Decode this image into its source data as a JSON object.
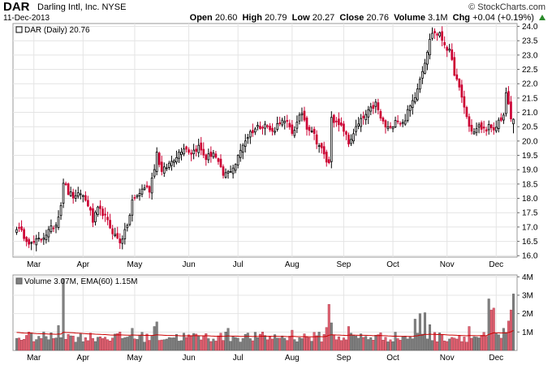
{
  "header": {
    "symbol": "DAR",
    "company": "Darling Intl, Inc.",
    "exchange": "NYSE",
    "date": "11-Dec-2013",
    "copyright": "© StockCharts.com",
    "open_label": "Open",
    "open": "20.60",
    "high_label": "High",
    "high": "20.79",
    "low_label": "Low",
    "low": "20.27",
    "close_label": "Close",
    "close": "20.76",
    "volume_label": "Volume",
    "volume": "3.1M",
    "chg_label": "Chg",
    "chg": "+0.04 (+0.19%)",
    "chg_direction": "up"
  },
  "colors": {
    "up": "#000000",
    "down": "#cc0033",
    "vol_up": "#808080",
    "vol_down": "#e06070",
    "ema": "#cc0000",
    "grid": "#e4e4e4"
  },
  "chart_data": [
    {
      "type": "candlestick",
      "legend": "DAR (Daily) 20.76",
      "ylim": [
        15.95,
        24.1
      ],
      "y_ticks": [
        "16.0",
        "16.5",
        "17.0",
        "17.5",
        "18.0",
        "18.5",
        "19.0",
        "19.5",
        "20.0",
        "20.5",
        "21.0",
        "21.5",
        "22.0",
        "22.5",
        "23.0",
        "23.5",
        "24.0"
      ],
      "month_ticks": [
        {
          "label": "Mar",
          "index": 7
        },
        {
          "label": "Apr",
          "index": 27
        },
        {
          "label": "May",
          "index": 48
        },
        {
          "label": "Jun",
          "index": 70
        },
        {
          "label": "Jul",
          "index": 90
        },
        {
          "label": "Aug",
          "index": 112
        },
        {
          "label": "Sep",
          "index": 133
        },
        {
          "label": "Oct",
          "index": 153
        },
        {
          "label": "Nov",
          "index": 175
        },
        {
          "label": "Dec",
          "index": 195
        }
      ],
      "keypoints": [
        {
          "i": 0,
          "c": 17.0
        },
        {
          "i": 3,
          "c": 16.7
        },
        {
          "i": 6,
          "c": 16.4
        },
        {
          "i": 10,
          "c": 16.6
        },
        {
          "i": 13,
          "c": 16.85
        },
        {
          "i": 16,
          "c": 17.1
        },
        {
          "i": 18,
          "c": 17.8
        },
        {
          "i": 19,
          "c": 18.6
        },
        {
          "i": 21,
          "c": 18.2
        },
        {
          "i": 24,
          "c": 18.0
        },
        {
          "i": 26,
          "c": 18.2
        },
        {
          "i": 29,
          "c": 17.8
        },
        {
          "i": 31,
          "c": 17.2
        },
        {
          "i": 33,
          "c": 17.6
        },
        {
          "i": 35,
          "c": 17.5
        },
        {
          "i": 38,
          "c": 17.0
        },
        {
          "i": 40,
          "c": 16.7
        },
        {
          "i": 42,
          "c": 16.5
        },
        {
          "i": 44,
          "c": 16.8
        },
        {
          "i": 46,
          "c": 17.4
        },
        {
          "i": 47,
          "c": 17.9
        },
        {
          "i": 49,
          "c": 18.1
        },
        {
          "i": 52,
          "c": 18.4
        },
        {
          "i": 54,
          "c": 18.3
        },
        {
          "i": 56,
          "c": 19.1
        },
        {
          "i": 57,
          "c": 19.6
        },
        {
          "i": 59,
          "c": 18.9
        },
        {
          "i": 62,
          "c": 19.2
        },
        {
          "i": 65,
          "c": 19.5
        },
        {
          "i": 68,
          "c": 19.8
        },
        {
          "i": 71,
          "c": 19.6
        },
        {
          "i": 74,
          "c": 19.8
        },
        {
          "i": 77,
          "c": 19.4
        },
        {
          "i": 80,
          "c": 19.6
        },
        {
          "i": 82,
          "c": 19.2
        },
        {
          "i": 84,
          "c": 18.8
        },
        {
          "i": 86,
          "c": 18.9
        },
        {
          "i": 89,
          "c": 19.2
        },
        {
          "i": 92,
          "c": 19.9
        },
        {
          "i": 95,
          "c": 20.3
        },
        {
          "i": 98,
          "c": 20.5
        },
        {
          "i": 101,
          "c": 20.6
        },
        {
          "i": 104,
          "c": 20.3
        },
        {
          "i": 107,
          "c": 20.7
        },
        {
          "i": 110,
          "c": 20.6
        },
        {
          "i": 112,
          "c": 20.3
        },
        {
          "i": 114,
          "c": 20.6
        },
        {
          "i": 116,
          "c": 21.0
        },
        {
          "i": 118,
          "c": 20.5
        },
        {
          "i": 120,
          "c": 20.4
        },
        {
          "i": 122,
          "c": 20.0
        },
        {
          "i": 124,
          "c": 19.7
        },
        {
          "i": 126,
          "c": 19.3
        },
        {
          "i": 127,
          "c": 19.2
        },
        {
          "i": 128,
          "c": 20.9
        },
        {
          "i": 130,
          "c": 20.6
        },
        {
          "i": 133,
          "c": 20.4
        },
        {
          "i": 135,
          "c": 19.9
        },
        {
          "i": 137,
          "c": 20.3
        },
        {
          "i": 140,
          "c": 20.7
        },
        {
          "i": 143,
          "c": 21.0
        },
        {
          "i": 146,
          "c": 21.3
        },
        {
          "i": 148,
          "c": 20.8
        },
        {
          "i": 150,
          "c": 20.5
        },
        {
          "i": 152,
          "c": 20.4
        },
        {
          "i": 154,
          "c": 20.8
        },
        {
          "i": 157,
          "c": 20.6
        },
        {
          "i": 159,
          "c": 21.0
        },
        {
          "i": 162,
          "c": 21.6
        },
        {
          "i": 164,
          "c": 22.2
        },
        {
          "i": 166,
          "c": 22.8
        },
        {
          "i": 168,
          "c": 23.5
        },
        {
          "i": 169,
          "c": 23.8
        },
        {
          "i": 172,
          "c": 23.7
        },
        {
          "i": 174,
          "c": 23.4
        },
        {
          "i": 176,
          "c": 23.1
        },
        {
          "i": 178,
          "c": 22.4
        },
        {
          "i": 180,
          "c": 21.8
        },
        {
          "i": 182,
          "c": 21.2
        },
        {
          "i": 184,
          "c": 20.5
        },
        {
          "i": 186,
          "c": 20.3
        },
        {
          "i": 188,
          "c": 20.5
        },
        {
          "i": 190,
          "c": 20.4
        },
        {
          "i": 192,
          "c": 20.5
        },
        {
          "i": 194,
          "c": 20.3
        },
        {
          "i": 196,
          "c": 20.7
        },
        {
          "i": 198,
          "c": 20.9
        },
        {
          "i": 199,
          "c": 21.6
        },
        {
          "i": 200,
          "c": 21.3
        },
        {
          "i": 201,
          "c": 20.72
        },
        {
          "i": 202,
          "c": 20.76
        }
      ],
      "last": {
        "o": 20.6,
        "h": 20.79,
        "l": 20.27,
        "c": 20.76
      }
    },
    {
      "type": "bar",
      "legend": "Volume 3.07M, EMA(60) 1.15M",
      "ylim": [
        0,
        4.1
      ],
      "y_ticks": [
        {
          "label": "1M",
          "v": 1
        },
        {
          "label": "2M",
          "v": 2
        },
        {
          "label": "3M",
          "v": 3
        },
        {
          "label": "4M",
          "v": 4
        }
      ],
      "base_volume_millions": 0.75,
      "volume_spikes": [
        {
          "i": 17,
          "v": 1.35
        },
        {
          "i": 19,
          "v": 3.9
        },
        {
          "i": 47,
          "v": 1.2
        },
        {
          "i": 56,
          "v": 1.3
        },
        {
          "i": 57,
          "v": 1.55
        },
        {
          "i": 86,
          "v": 1.2
        },
        {
          "i": 112,
          "v": 1.1
        },
        {
          "i": 126,
          "v": 1.25
        },
        {
          "i": 127,
          "v": 2.5
        },
        {
          "i": 128,
          "v": 1.5
        },
        {
          "i": 135,
          "v": 1.3
        },
        {
          "i": 162,
          "v": 1.7
        },
        {
          "i": 164,
          "v": 2.0
        },
        {
          "i": 166,
          "v": 2.05
        },
        {
          "i": 168,
          "v": 1.4
        },
        {
          "i": 184,
          "v": 1.3
        },
        {
          "i": 192,
          "v": 2.8
        },
        {
          "i": 193,
          "v": 2.2
        },
        {
          "i": 194,
          "v": 2.3
        },
        {
          "i": 198,
          "v": 1.2
        },
        {
          "i": 200,
          "v": 1.6
        },
        {
          "i": 201,
          "v": 2.2
        },
        {
          "i": 202,
          "v": 3.07
        }
      ],
      "ema_last_millions": 1.15
    }
  ]
}
